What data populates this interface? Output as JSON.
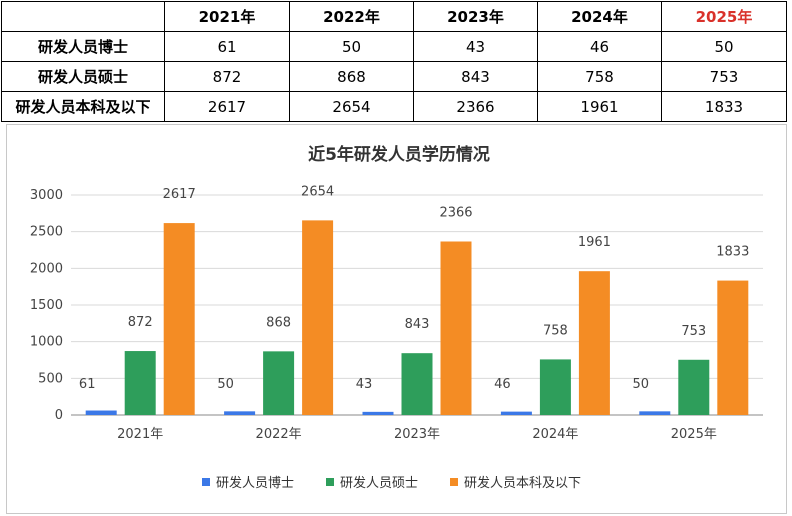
{
  "table": {
    "headers": [
      "",
      "2021年",
      "2022年",
      "2023年",
      "2024年",
      "2025年"
    ],
    "highlight_color": "#d9312a",
    "rows": [
      {
        "label": "研发人员博士",
        "values": [
          "61",
          "50",
          "43",
          "46",
          "50"
        ]
      },
      {
        "label": "研发人员硕士",
        "values": [
          "872",
          "868",
          "843",
          "758",
          "753"
        ]
      },
      {
        "label": "研发人员本科及以下",
        "values": [
          "2617",
          "2654",
          "2366",
          "1961",
          "1833"
        ]
      }
    ]
  },
  "chart_data": {
    "type": "bar",
    "title": "近5年研发人员学历情况",
    "categories": [
      "2021年",
      "2022年",
      "2023年",
      "2024年",
      "2025年"
    ],
    "series": [
      {
        "name": "研发人员博士",
        "color": "#3b78e7",
        "values": [
          61,
          50,
          43,
          46,
          50
        ]
      },
      {
        "name": "研发人员硕士",
        "color": "#2e9e5b",
        "values": [
          872,
          868,
          843,
          758,
          753
        ]
      },
      {
        "name": "研发人员本科及以下",
        "color": "#f48c24",
        "values": [
          2617,
          2654,
          2366,
          1961,
          1833
        ]
      }
    ],
    "ylim": [
      0,
      3000
    ],
    "yticks": [
      0,
      500,
      1000,
      1500,
      2000,
      2500,
      3000
    ],
    "grid": true,
    "legend_position": "bottom",
    "data_labels": true
  }
}
